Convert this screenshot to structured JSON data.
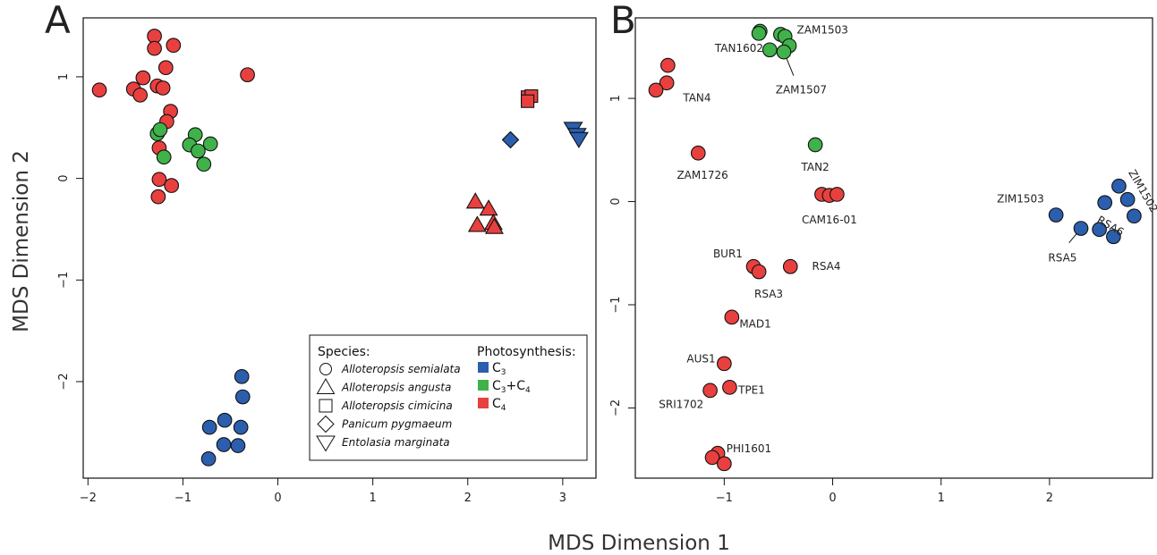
{
  "colors": {
    "C3": "#2b5fae",
    "C3C4": "#3fb24a",
    "C4": "#e8403f"
  },
  "axis_titles": {
    "x": "MDS Dimension 1",
    "y": "MDS Dimension 2"
  },
  "legend": {
    "species_title": "Species:",
    "species": [
      {
        "shape": "circle",
        "label": "Alloteropsis semialata"
      },
      {
        "shape": "triangle",
        "label": "Alloteropsis angusta"
      },
      {
        "shape": "square",
        "label": "Alloteropsis cimicina"
      },
      {
        "shape": "diamond",
        "label": "Panicum pygmaeum"
      },
      {
        "shape": "triangle-down",
        "label": "Entolasia marginata"
      }
    ],
    "photo_title": "Photosynthesis:",
    "photo": [
      {
        "type": "C3",
        "base": "C",
        "sub": "3",
        "rest": ""
      },
      {
        "type": "C3C4",
        "base": "C",
        "sub": "3",
        "rest": "+C",
        "sub2": "4"
      },
      {
        "type": "C4",
        "base": "C",
        "sub": "4",
        "rest": ""
      }
    ]
  },
  "chart_data": [
    {
      "panel": "A",
      "type": "scatter",
      "xlim": [
        -2.05,
        3.35
      ],
      "ylim": [
        -2.95,
        1.58
      ],
      "xticks": [
        "-2",
        "-1",
        "0",
        "1",
        "2",
        "3"
      ],
      "yticks": [
        "-2",
        "-1",
        "0",
        "1"
      ],
      "points": [
        {
          "x": -1.88,
          "y": 0.87,
          "shape": "circle",
          "type": "C4"
        },
        {
          "x": -1.52,
          "y": 0.88,
          "shape": "circle",
          "type": "C4"
        },
        {
          "x": -1.45,
          "y": 0.82,
          "shape": "circle",
          "type": "C4"
        },
        {
          "x": -1.42,
          "y": 0.99,
          "shape": "circle",
          "type": "C4"
        },
        {
          "x": -1.3,
          "y": 1.4,
          "shape": "circle",
          "type": "C4"
        },
        {
          "x": -1.3,
          "y": 1.28,
          "shape": "circle",
          "type": "C4"
        },
        {
          "x": -1.27,
          "y": 0.91,
          "shape": "circle",
          "type": "C4"
        },
        {
          "x": -1.21,
          "y": 0.89,
          "shape": "circle",
          "type": "C4"
        },
        {
          "x": -1.18,
          "y": 1.09,
          "shape": "circle",
          "type": "C4"
        },
        {
          "x": -1.1,
          "y": 1.31,
          "shape": "circle",
          "type": "C4"
        },
        {
          "x": -0.32,
          "y": 1.02,
          "shape": "circle",
          "type": "C4"
        },
        {
          "x": -1.13,
          "y": 0.66,
          "shape": "circle",
          "type": "C4"
        },
        {
          "x": -1.17,
          "y": 0.56,
          "shape": "circle",
          "type": "C4"
        },
        {
          "x": -1.25,
          "y": 0.3,
          "shape": "circle",
          "type": "C4"
        },
        {
          "x": -1.25,
          "y": -0.01,
          "shape": "circle",
          "type": "C4"
        },
        {
          "x": -1.12,
          "y": -0.07,
          "shape": "circle",
          "type": "C4"
        },
        {
          "x": -1.26,
          "y": -0.18,
          "shape": "circle",
          "type": "C4"
        },
        {
          "x": -1.27,
          "y": 0.44,
          "shape": "circle",
          "type": "C3C4"
        },
        {
          "x": -1.24,
          "y": 0.48,
          "shape": "circle",
          "type": "C3C4"
        },
        {
          "x": -1.2,
          "y": 0.21,
          "shape": "circle",
          "type": "C3C4"
        },
        {
          "x": -0.87,
          "y": 0.43,
          "shape": "circle",
          "type": "C3C4"
        },
        {
          "x": -0.93,
          "y": 0.33,
          "shape": "circle",
          "type": "C3C4"
        },
        {
          "x": -0.84,
          "y": 0.27,
          "shape": "circle",
          "type": "C3C4"
        },
        {
          "x": -0.71,
          "y": 0.34,
          "shape": "circle",
          "type": "C3C4"
        },
        {
          "x": -0.78,
          "y": 0.14,
          "shape": "circle",
          "type": "C3C4"
        },
        {
          "x": -0.38,
          "y": -1.95,
          "shape": "circle",
          "type": "C3"
        },
        {
          "x": -0.37,
          "y": -2.15,
          "shape": "circle",
          "type": "C3"
        },
        {
          "x": -0.56,
          "y": -2.38,
          "shape": "circle",
          "type": "C3"
        },
        {
          "x": -0.72,
          "y": -2.45,
          "shape": "circle",
          "type": "C3"
        },
        {
          "x": -0.39,
          "y": -2.45,
          "shape": "circle",
          "type": "C3"
        },
        {
          "x": -0.57,
          "y": -2.62,
          "shape": "circle",
          "type": "C3"
        },
        {
          "x": -0.42,
          "y": -2.63,
          "shape": "circle",
          "type": "C3"
        },
        {
          "x": -0.73,
          "y": -2.76,
          "shape": "circle",
          "type": "C3"
        },
        {
          "x": 2.08,
          "y": -0.23,
          "shape": "triangle",
          "type": "C4"
        },
        {
          "x": 2.22,
          "y": -0.3,
          "shape": "triangle",
          "type": "C4"
        },
        {
          "x": 2.1,
          "y": -0.46,
          "shape": "triangle",
          "type": "C4"
        },
        {
          "x": 2.27,
          "y": -0.44,
          "shape": "triangle",
          "type": "C4"
        },
        {
          "x": 2.28,
          "y": -0.48,
          "shape": "triangle",
          "type": "C4"
        },
        {
          "x": 2.63,
          "y": 0.8,
          "shape": "square",
          "type": "C4"
        },
        {
          "x": 2.67,
          "y": 0.81,
          "shape": "square",
          "type": "C4"
        },
        {
          "x": 2.63,
          "y": 0.76,
          "shape": "square",
          "type": "C4"
        },
        {
          "x": 2.45,
          "y": 0.38,
          "shape": "diamond",
          "type": "C3"
        },
        {
          "x": 3.11,
          "y": 0.49,
          "shape": "triangle-down",
          "type": "C3"
        },
        {
          "x": 3.15,
          "y": 0.43,
          "shape": "triangle-down",
          "type": "C3"
        },
        {
          "x": 3.17,
          "y": 0.39,
          "shape": "triangle-down",
          "type": "C3"
        }
      ]
    },
    {
      "panel": "B",
      "type": "scatter",
      "xlim": [
        -1.82,
        2.95
      ],
      "ylim": [
        -2.68,
        1.78
      ],
      "xticks": [
        "-1",
        "0",
        "1",
        "2"
      ],
      "yticks": [
        "-2",
        "-1",
        "0",
        "1"
      ],
      "points": [
        {
          "x": -0.67,
          "y": 1.65,
          "type": "C3C4"
        },
        {
          "x": -0.68,
          "y": 1.63,
          "type": "C3C4"
        },
        {
          "x": -0.48,
          "y": 1.62,
          "type": "C3C4"
        },
        {
          "x": -0.44,
          "y": 1.6,
          "type": "C3C4"
        },
        {
          "x": -0.4,
          "y": 1.51,
          "type": "C3C4"
        },
        {
          "x": -0.58,
          "y": 1.47,
          "type": "C3C4"
        },
        {
          "x": -0.45,
          "y": 1.45,
          "type": "C3C4"
        },
        {
          "x": -0.16,
          "y": 0.55,
          "type": "C3C4"
        },
        {
          "x": -1.52,
          "y": 1.32,
          "type": "C4"
        },
        {
          "x": -1.53,
          "y": 1.15,
          "type": "C4"
        },
        {
          "x": -1.63,
          "y": 1.08,
          "type": "C4"
        },
        {
          "x": -1.24,
          "y": 0.47,
          "type": "C4"
        },
        {
          "x": -0.1,
          "y": 0.07,
          "type": "C4"
        },
        {
          "x": -0.03,
          "y": 0.06,
          "type": "C4"
        },
        {
          "x": 0.04,
          "y": 0.07,
          "type": "C4"
        },
        {
          "x": -0.73,
          "y": -0.63,
          "type": "C4"
        },
        {
          "x": -0.68,
          "y": -0.68,
          "type": "C4"
        },
        {
          "x": -0.39,
          "y": -0.63,
          "type": "C4"
        },
        {
          "x": -0.93,
          "y": -1.12,
          "type": "C4"
        },
        {
          "x": -1.0,
          "y": -1.57,
          "type": "C4"
        },
        {
          "x": -0.95,
          "y": -1.8,
          "type": "C4"
        },
        {
          "x": -1.13,
          "y": -1.83,
          "type": "C4"
        },
        {
          "x": -1.06,
          "y": -2.44,
          "type": "C4"
        },
        {
          "x": -1.11,
          "y": -2.48,
          "type": "C4"
        },
        {
          "x": -1.0,
          "y": -2.54,
          "type": "C4"
        },
        {
          "x": 2.06,
          "y": -0.13,
          "type": "C3"
        },
        {
          "x": 2.29,
          "y": -0.26,
          "type": "C3"
        },
        {
          "x": 2.46,
          "y": -0.27,
          "type": "C3"
        },
        {
          "x": 2.51,
          "y": -0.01,
          "type": "C3"
        },
        {
          "x": 2.59,
          "y": -0.34,
          "type": "C3"
        },
        {
          "x": 2.64,
          "y": 0.15,
          "type": "C3"
        },
        {
          "x": 2.72,
          "y": 0.02,
          "type": "C3"
        },
        {
          "x": 2.78,
          "y": -0.14,
          "type": "C3"
        }
      ],
      "labels": [
        {
          "text": "ZAM1503",
          "x": -0.33,
          "y": 1.66,
          "anchor": "start"
        },
        {
          "text": "TAN1602",
          "x": -0.64,
          "y": 1.48,
          "anchor": "end"
        },
        {
          "text": "ZAM1507",
          "x": -0.29,
          "y": 1.08,
          "anchor": "middle",
          "from": [
            -0.45,
            1.45
          ],
          "to": [
            -0.36,
            1.22
          ]
        },
        {
          "text": "TAN4",
          "x": -1.38,
          "y": 1.0,
          "anchor": "start"
        },
        {
          "text": "TAN2",
          "x": -0.16,
          "y": 0.33,
          "anchor": "middle"
        },
        {
          "text": "ZAM1726",
          "x": -1.2,
          "y": 0.25,
          "anchor": "middle"
        },
        {
          "text": "CAM16-01",
          "x": -0.03,
          "y": -0.18,
          "anchor": "middle"
        },
        {
          "text": "ZIM1503",
          "x": 1.95,
          "y": 0.02,
          "anchor": "end"
        },
        {
          "text": "RSA6",
          "x": 2.56,
          "y": -0.24,
          "anchor": "middle",
          "rotate": 30
        },
        {
          "text": "ZIM1502",
          "x": 2.86,
          "y": 0.1,
          "anchor": "middle",
          "rotate": 60
        },
        {
          "text": "RSA5",
          "x": 2.12,
          "y": -0.55,
          "anchor": "middle",
          "from": [
            2.29,
            -0.26
          ],
          "to": [
            2.18,
            -0.4
          ]
        },
        {
          "text": "BUR1",
          "x": -0.83,
          "y": -0.51,
          "anchor": "end"
        },
        {
          "text": "RSA4",
          "x": -0.19,
          "y": -0.63,
          "anchor": "start"
        },
        {
          "text": "RSA3",
          "x": -0.59,
          "y": -0.9,
          "anchor": "middle"
        },
        {
          "text": "MAD1",
          "x": -0.86,
          "y": -1.19,
          "anchor": "start"
        },
        {
          "text": "AUS1",
          "x": -1.08,
          "y": -1.53,
          "anchor": "end"
        },
        {
          "text": "TPE1",
          "x": -0.87,
          "y": -1.83,
          "anchor": "start"
        },
        {
          "text": "SRI1702",
          "x": -1.19,
          "y": -1.97,
          "anchor": "end"
        },
        {
          "text": "PHI1601",
          "x": -0.98,
          "y": -2.4,
          "anchor": "start"
        }
      ]
    }
  ]
}
